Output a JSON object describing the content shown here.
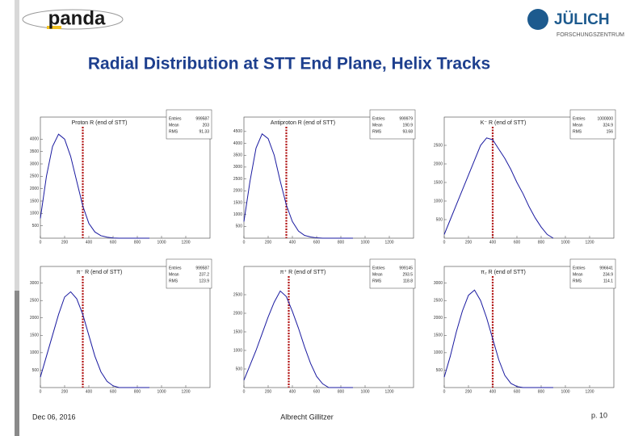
{
  "header": {
    "logo_left": "panda",
    "logo_right": "JÜLICH",
    "logo_right_sub": "FORSCHUNGSZENTRUM",
    "title": "Radial Distribution at STT End Plane, Helix Tracks"
  },
  "footer": {
    "date": "Dec 06, 2016",
    "author": "Albrecht Gillitzer",
    "page": "p. 10"
  },
  "chart_data": [
    {
      "type": "line",
      "title": "Proton R (end of STT)",
      "color": "#1a1aa0",
      "marker_color": "#b01010",
      "marker_x": 350,
      "stats": [
        {
          "label": "Entries",
          "value": 999587
        },
        {
          "label": "Mean",
          "value": 203
        },
        {
          "label": "RMS",
          "value": 91.33
        }
      ],
      "x": [
        0,
        50,
        100,
        150,
        200,
        250,
        300,
        350,
        400,
        450,
        500,
        550,
        600,
        650,
        700,
        750,
        800,
        850,
        900
      ],
      "values": [
        800,
        2500,
        3700,
        4200,
        4000,
        3300,
        2300,
        1300,
        600,
        250,
        100,
        40,
        10,
        0,
        0,
        0,
        0,
        0,
        0
      ],
      "xlim": [
        0,
        1400
      ],
      "xticks": [
        0,
        200,
        400,
        600,
        800,
        1000,
        1200
      ],
      "ylim": [
        0,
        4500
      ],
      "yticks": [
        500,
        1000,
        1500,
        2000,
        2500,
        3000,
        3500,
        4000
      ]
    },
    {
      "type": "line",
      "title": "Antiproton R (end of STT)",
      "color": "#1a1aa0",
      "marker_color": "#b01010",
      "marker_x": 350,
      "stats": [
        {
          "label": "Entries",
          "value": 999979
        },
        {
          "label": "Mean",
          "value": 190.9
        },
        {
          "label": "RMS",
          "value": 93.68
        }
      ],
      "x": [
        0,
        50,
        100,
        150,
        200,
        250,
        300,
        350,
        400,
        450,
        500,
        550,
        600,
        650,
        700,
        750,
        800,
        850,
        900
      ],
      "values": [
        700,
        2400,
        3800,
        4400,
        4200,
        3500,
        2400,
        1400,
        700,
        300,
        120,
        50,
        15,
        0,
        0,
        0,
        0,
        0,
        0
      ],
      "xlim": [
        0,
        1400
      ],
      "xticks": [
        0,
        200,
        400,
        600,
        800,
        1000,
        1200
      ],
      "ylim": [
        0,
        4700
      ],
      "yticks": [
        500,
        1000,
        1500,
        2000,
        2500,
        3000,
        3500,
        4000,
        4500
      ]
    },
    {
      "type": "line",
      "title": "K⁻ R (end of STT)",
      "color": "#1a1aa0",
      "marker_color": "#b01010",
      "marker_x": 400,
      "stats": [
        {
          "label": "Entries",
          "value": 1000000
        },
        {
          "label": "Mean",
          "value": 324.9
        },
        {
          "label": "RMS",
          "value": 156
        }
      ],
      "x": [
        0,
        50,
        100,
        150,
        200,
        250,
        300,
        350,
        400,
        450,
        500,
        550,
        600,
        650,
        700,
        750,
        800,
        850,
        900
      ],
      "values": [
        100,
        500,
        900,
        1300,
        1700,
        2100,
        2500,
        2700,
        2650,
        2400,
        2150,
        1850,
        1500,
        1200,
        850,
        550,
        300,
        100,
        0
      ],
      "xlim": [
        0,
        1400
      ],
      "xticks": [
        0,
        200,
        400,
        600,
        800,
        1000,
        1200
      ],
      "ylim": [
        0,
        3000
      ],
      "yticks": [
        500,
        1000,
        1500,
        2000,
        2500
      ]
    },
    {
      "type": "line",
      "title": "π⁻ R (end of STT)",
      "color": "#1a1aa0",
      "marker_color": "#b01010",
      "marker_x": 350,
      "stats": [
        {
          "label": "Entries",
          "value": 999587
        },
        {
          "label": "Mean",
          "value": 237.2
        },
        {
          "label": "RMS",
          "value": 123.9
        }
      ],
      "x": [
        0,
        50,
        100,
        150,
        200,
        250,
        300,
        350,
        400,
        450,
        500,
        550,
        600,
        650,
        700,
        750,
        800,
        850,
        900
      ],
      "values": [
        300,
        900,
        1500,
        2100,
        2600,
        2750,
        2550,
        2100,
        1500,
        900,
        450,
        180,
        50,
        0,
        0,
        0,
        0,
        0,
        0
      ],
      "xlim": [
        0,
        1400
      ],
      "xticks": [
        0,
        200,
        400,
        600,
        800,
        1000,
        1200
      ],
      "ylim": [
        0,
        3200
      ],
      "yticks": [
        500,
        1000,
        1500,
        2000,
        2500,
        3000
      ]
    },
    {
      "type": "line",
      "title": "π⁺ R (end of STT)",
      "color": "#1a1aa0",
      "marker_color": "#b01010",
      "marker_x": 370,
      "stats": [
        {
          "label": "Entries",
          "value": 999145
        },
        {
          "label": "Mean",
          "value": 293.5
        },
        {
          "label": "RMS",
          "value": 118.8
        }
      ],
      "x": [
        0,
        50,
        100,
        150,
        200,
        250,
        300,
        350,
        400,
        450,
        500,
        550,
        600,
        650,
        700,
        750,
        800,
        850,
        900
      ],
      "values": [
        200,
        600,
        1000,
        1450,
        1900,
        2300,
        2600,
        2450,
        2050,
        1600,
        1100,
        650,
        300,
        100,
        0,
        0,
        0,
        0,
        0
      ],
      "xlim": [
        0,
        1400
      ],
      "xticks": [
        0,
        200,
        400,
        600,
        800,
        1000,
        1200
      ],
      "ylim": [
        0,
        3000
      ],
      "yticks": [
        500,
        1000,
        1500,
        2000,
        2500
      ]
    },
    {
      "type": "line",
      "title": "π₂ R (end of STT)",
      "color": "#1a1aa0",
      "marker_color": "#b01010",
      "marker_x": 400,
      "stats": [
        {
          "label": "Entries",
          "value": 996641
        },
        {
          "label": "Mean",
          "value": 234.9
        },
        {
          "label": "RMS",
          "value": 114.1
        }
      ],
      "x": [
        0,
        50,
        100,
        150,
        200,
        250,
        300,
        350,
        400,
        450,
        500,
        550,
        600,
        650,
        700,
        750,
        800,
        850,
        900
      ],
      "values": [
        300,
        900,
        1600,
        2200,
        2650,
        2800,
        2500,
        2000,
        1400,
        800,
        350,
        120,
        30,
        0,
        0,
        0,
        0,
        0,
        0
      ],
      "xlim": [
        0,
        1400
      ],
      "xticks": [
        0,
        200,
        400,
        600,
        800,
        1000,
        1200
      ],
      "ylim": [
        0,
        3200
      ],
      "yticks": [
        500,
        1000,
        1500,
        2000,
        2500,
        3000
      ]
    }
  ]
}
